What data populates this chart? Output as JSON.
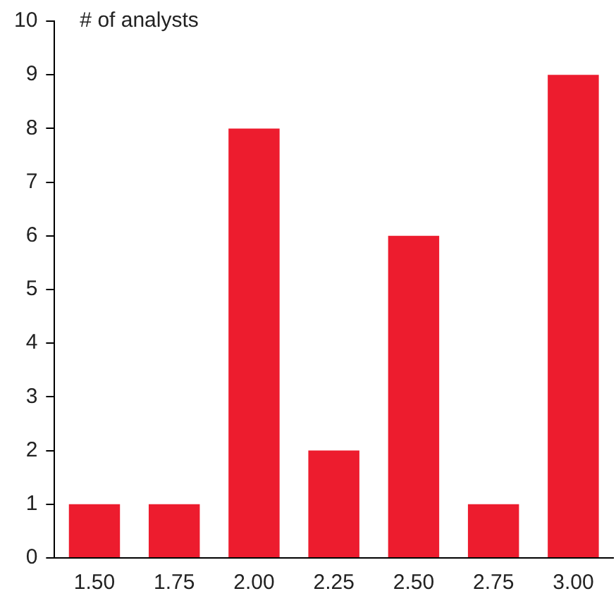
{
  "chart_data": {
    "type": "bar",
    "ylabel": "# of analysts",
    "categories": [
      "1.50",
      "1.75",
      "2.00",
      "2.25",
      "2.50",
      "2.75",
      "3.00"
    ],
    "values": [
      1,
      1,
      8,
      2,
      6,
      1,
      9
    ],
    "color": "#ed1c2e",
    "ylim": [
      0,
      10
    ],
    "yticks": [
      0,
      1,
      2,
      3,
      4,
      5,
      6,
      7,
      8,
      9,
      10
    ],
    "grid": false,
    "legend": false
  }
}
